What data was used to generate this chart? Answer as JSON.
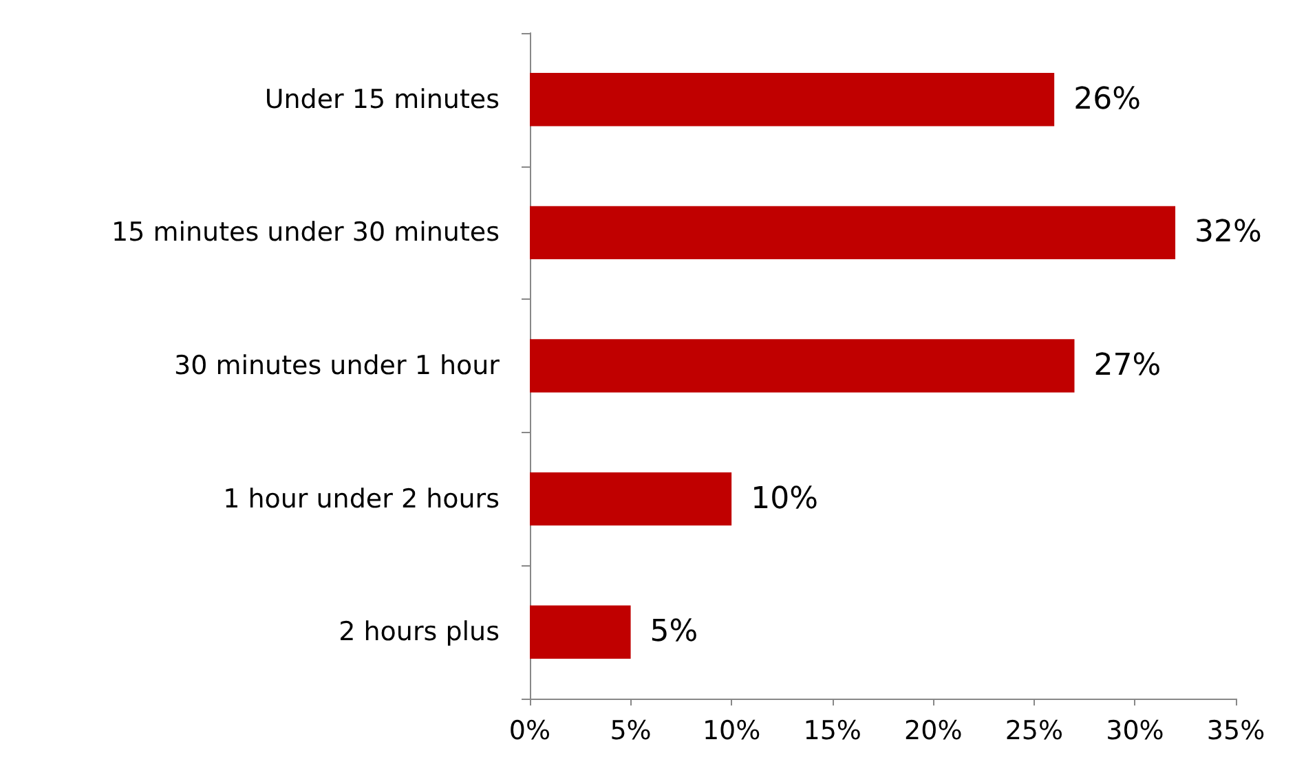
{
  "chart_data": {
    "type": "bar",
    "orientation": "horizontal",
    "categories": [
      "Under 15 minutes",
      "15 minutes under 30 minutes",
      "30 minutes under 1 hour",
      "1 hour under 2 hours",
      "2 hours plus"
    ],
    "series": [
      {
        "color": "#c00000",
        "values": [
          26,
          32,
          27,
          10,
          5
        ],
        "value_labels": [
          "26%",
          "32%",
          "27%",
          "10%",
          "5%"
        ]
      }
    ],
    "xlim": [
      0,
      35
    ],
    "xticks": [
      {
        "value": 0,
        "label": "0%"
      },
      {
        "value": 5,
        "label": "5%"
      },
      {
        "value": 10,
        "label": "10%"
      },
      {
        "value": 15,
        "label": "15%"
      },
      {
        "value": 20,
        "label": "20%"
      },
      {
        "value": 25,
        "label": "25%"
      },
      {
        "value": 30,
        "label": "30%"
      },
      {
        "value": 35,
        "label": "35%"
      }
    ],
    "grid": false
  }
}
